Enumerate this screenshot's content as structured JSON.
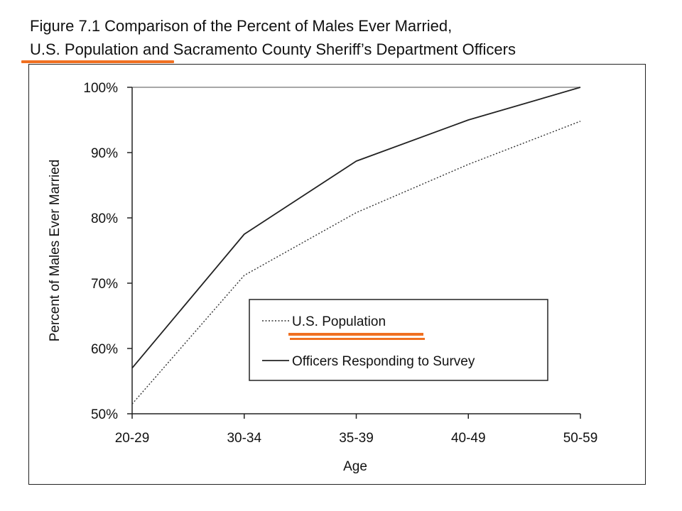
{
  "chart_data": {
    "type": "line",
    "title_line1": "Figure 7.1  Comparison of the Percent of Males Ever Married,",
    "title_line2": "U.S. Population and Sacramento County Sheriff’s Department Officers",
    "xlabel": "Age",
    "ylabel": "Percent of Males Ever Married",
    "categories": [
      "20-29",
      "30-34",
      "35-39",
      "40-49",
      "50-59"
    ],
    "ylim": [
      50,
      100
    ],
    "yticks": [
      "50%",
      "60%",
      "70%",
      "80%",
      "90%",
      "100%"
    ],
    "grid": false,
    "legend_position": "inside lower-right",
    "series": [
      {
        "name": "U.S. Population",
        "style": "dotted",
        "color": "#333333",
        "values": [
          51.5,
          71.2,
          80.8,
          88.2,
          94.8
        ]
      },
      {
        "name": "Officers Responding to Survey",
        "style": "solid",
        "color": "#222222",
        "values": [
          57.0,
          77.5,
          88.7,
          95.0,
          100.0
        ]
      }
    ],
    "highlight_color": "#f07021"
  }
}
